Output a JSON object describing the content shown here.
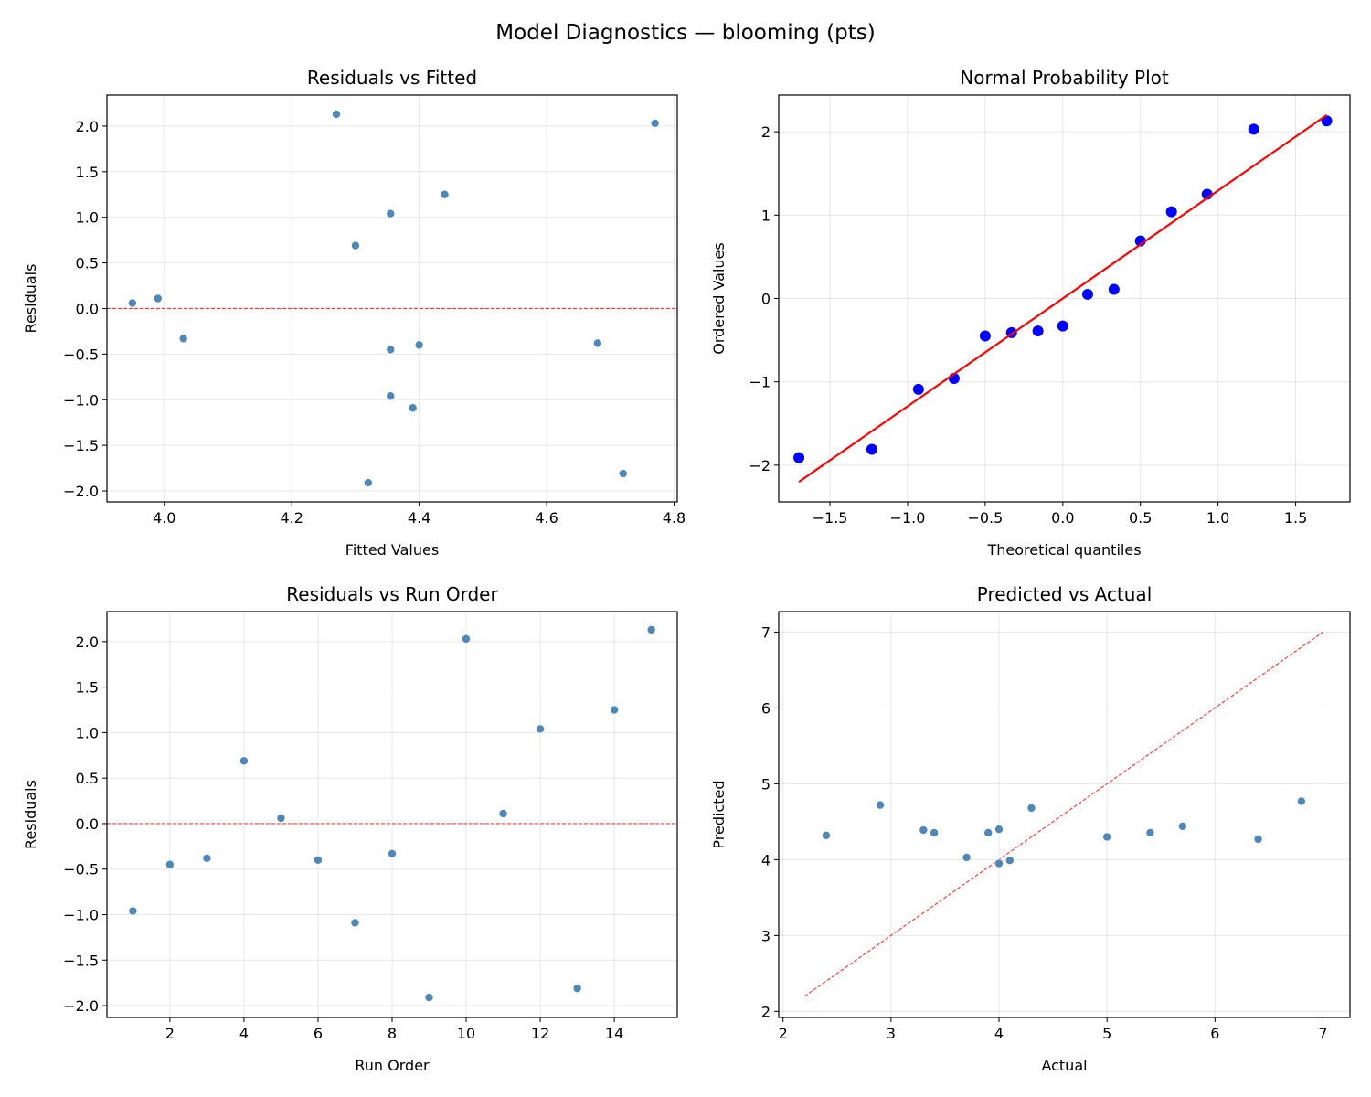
{
  "suptitle": "Model Diagnostics — blooming (pts)",
  "chart_data": [
    {
      "type": "scatter",
      "title": "Residuals vs Fitted",
      "xlabel": "Fitted Values",
      "ylabel": "Residuals",
      "xlim": [
        3.91,
        4.805
      ],
      "ylim": [
        -2.12,
        2.34
      ],
      "xticks": [
        4.0,
        4.2,
        4.4,
        4.6,
        4.8
      ],
      "xtick_labels": [
        "4.0",
        "4.2",
        "4.4",
        "4.6",
        "4.8"
      ],
      "yticks": [
        -2.0,
        -1.5,
        -1.0,
        -0.5,
        0.0,
        0.5,
        1.0,
        1.5,
        2.0
      ],
      "ytick_labels": [
        "−2.0",
        "−1.5",
        "−1.0",
        "−0.5",
        "0.0",
        "0.5",
        "1.0",
        "1.5",
        "2.0"
      ],
      "grid": true,
      "x": [
        4.355,
        4.355,
        4.68,
        4.3,
        3.95,
        4.4,
        4.39,
        4.03,
        4.32,
        4.77,
        3.99,
        4.355,
        4.72,
        4.44,
        4.27
      ],
      "y": [
        -0.96,
        -0.45,
        -0.38,
        0.69,
        0.06,
        -0.4,
        -1.09,
        -0.33,
        -1.91,
        2.03,
        0.11,
        1.04,
        -1.81,
        1.25,
        2.13
      ],
      "point_color": "#4682b4",
      "reference_line": {
        "kind": "horizontal",
        "y": 0,
        "color": "#ff0000",
        "style": "dashed"
      }
    },
    {
      "type": "scatter",
      "title": "Normal Probability Plot",
      "xlabel": "Theoretical quantiles",
      "ylabel": "Ordered Values",
      "xlim": [
        -1.83,
        1.85
      ],
      "ylim": [
        -2.44,
        2.44
      ],
      "xticks": [
        -1.5,
        -1.0,
        -0.5,
        0.0,
        0.5,
        1.0,
        1.5
      ],
      "xtick_labels": [
        "−1.5",
        "−1.0",
        "−0.5",
        "0.0",
        "0.5",
        "1.0",
        "1.5"
      ],
      "yticks": [
        -2,
        -1,
        0,
        1,
        2
      ],
      "ytick_labels": [
        "−2",
        "−1",
        "0",
        "1",
        "2"
      ],
      "grid": true,
      "x": [
        -1.7,
        -1.23,
        -0.93,
        -0.7,
        -0.5,
        -0.33,
        -0.16,
        0.0,
        0.16,
        0.33,
        0.5,
        0.7,
        0.93,
        1.23,
        1.7
      ],
      "y": [
        -1.91,
        -1.81,
        -1.09,
        -0.96,
        -0.45,
        -0.41,
        -0.39,
        -0.33,
        0.05,
        0.11,
        0.69,
        1.04,
        1.25,
        2.03,
        2.13
      ],
      "point_color": "#0000ff",
      "fit_line": {
        "slope": 1.294,
        "intercept": 0.0,
        "x_range": [
          -1.7,
          1.7
        ],
        "color": "#ff0000",
        "style": "solid"
      }
    },
    {
      "type": "scatter",
      "title": "Residuals vs Run Order",
      "xlabel": "Run Order",
      "ylabel": "Residuals",
      "xlim": [
        0.3,
        15.7
      ],
      "ylim": [
        -2.13,
        2.33
      ],
      "xticks": [
        2,
        4,
        6,
        8,
        10,
        12,
        14
      ],
      "xtick_labels": [
        "2",
        "4",
        "6",
        "8",
        "10",
        "12",
        "14"
      ],
      "yticks": [
        -2.0,
        -1.5,
        -1.0,
        -0.5,
        0.0,
        0.5,
        1.0,
        1.5,
        2.0
      ],
      "ytick_labels": [
        "−2.0",
        "−1.5",
        "−1.0",
        "−0.5",
        "0.0",
        "0.5",
        "1.0",
        "1.5",
        "2.0"
      ],
      "grid": true,
      "x": [
        1,
        2,
        3,
        4,
        5,
        6,
        7,
        8,
        9,
        10,
        11,
        12,
        13,
        14,
        15
      ],
      "y": [
        -0.96,
        -0.45,
        -0.38,
        0.69,
        0.06,
        -0.4,
        -1.09,
        -0.33,
        -1.91,
        2.03,
        0.11,
        1.04,
        -1.81,
        1.25,
        2.13
      ],
      "point_color": "#4682b4",
      "reference_line": {
        "kind": "horizontal",
        "y": 0,
        "color": "#ff0000",
        "style": "dashed"
      }
    },
    {
      "type": "scatter",
      "title": "Predicted vs Actual",
      "xlabel": "Actual",
      "ylabel": "Predicted",
      "xlim": [
        1.96,
        7.25
      ],
      "ylim": [
        1.92,
        7.27
      ],
      "xticks": [
        2,
        3,
        4,
        5,
        6,
        7
      ],
      "xtick_labels": [
        "2",
        "3",
        "4",
        "5",
        "6",
        "7"
      ],
      "yticks": [
        2,
        3,
        4,
        5,
        6,
        7
      ],
      "ytick_labels": [
        "2",
        "3",
        "4",
        "5",
        "6",
        "7"
      ],
      "grid": true,
      "x": [
        3.4,
        3.9,
        4.3,
        5.0,
        4.0,
        4.0,
        3.3,
        3.7,
        2.4,
        6.8,
        4.1,
        5.4,
        2.9,
        5.7,
        6.4
      ],
      "y": [
        4.355,
        4.355,
        4.68,
        4.3,
        3.95,
        4.4,
        4.39,
        4.03,
        4.32,
        4.77,
        3.99,
        4.355,
        4.72,
        4.44,
        4.27
      ],
      "point_color": "#4682b4",
      "reference_line": {
        "kind": "diagonal",
        "range": [
          2.2,
          7.0
        ],
        "color": "#ff0000",
        "style": "dashed"
      }
    }
  ]
}
